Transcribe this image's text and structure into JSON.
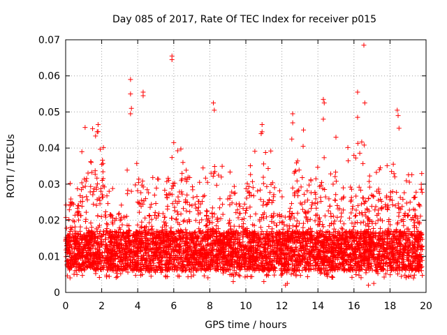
{
  "chart_data": {
    "type": "scatter",
    "title": "Day 085 of 2017, Rate Of TEC Index for receiver p015",
    "xlabel": "GPS time / hours",
    "ylabel": "ROTI / TECUs",
    "xlim": [
      0,
      20
    ],
    "ylim": [
      0,
      0.07
    ],
    "x_ticks": [
      "0",
      "2",
      "4",
      "6",
      "8",
      "10",
      "12",
      "14",
      "16",
      "18",
      "20"
    ],
    "y_ticks": [
      "0",
      "0.01",
      "0.02",
      "0.03",
      "0.04",
      "0.05",
      "0.06",
      "0.07"
    ],
    "grid": true,
    "marker": "+",
    "marker_color": "#ff0000",
    "series": [
      {
        "name": "ROTI",
        "points": [
          [
            3.6,
            0.059
          ],
          [
            3.6,
            0.055
          ],
          [
            3.65,
            0.051
          ],
          [
            3.6,
            0.0495
          ],
          [
            4.3,
            0.0555
          ],
          [
            4.3,
            0.0545
          ],
          [
            5.9,
            0.0655
          ],
          [
            5.9,
            0.0645
          ],
          [
            8.2,
            0.0525
          ],
          [
            8.25,
            0.0505
          ],
          [
            10.9,
            0.0465
          ],
          [
            10.9,
            0.0445
          ],
          [
            10.85,
            0.044
          ],
          [
            12.6,
            0.0495
          ],
          [
            12.6,
            0.047
          ],
          [
            12.55,
            0.0425
          ],
          [
            13.2,
            0.045
          ],
          [
            14.3,
            0.0535
          ],
          [
            14.35,
            0.0525
          ],
          [
            14.3,
            0.048
          ],
          [
            15.0,
            0.043
          ],
          [
            16.2,
            0.0555
          ],
          [
            16.2,
            0.0485
          ],
          [
            16.6,
            0.0525
          ],
          [
            16.55,
            0.0685
          ],
          [
            18.4,
            0.0505
          ],
          [
            18.45,
            0.049
          ],
          [
            18.5,
            0.0455
          ],
          [
            1.8,
            0.0465
          ],
          [
            1.75,
            0.0445
          ],
          [
            0.9,
            0.039
          ],
          [
            6.0,
            0.0415
          ],
          [
            12.2,
            0.002
          ],
          [
            12.3,
            0.0025
          ],
          [
            16.8,
            0.002
          ],
          [
            17.1,
            0.0025
          ],
          [
            11.0,
            0.003
          ],
          [
            9.3,
            0.003
          ]
        ]
      }
    ],
    "density_profile": {
      "description": "dense band of ROTI values roughly 0.004-0.02 TECU throughout 0-19.8 h; per-bin typical upper envelope",
      "bins": [
        {
          "x0": 0.0,
          "x1": 1.0,
          "upper": 0.027,
          "spike": 0.038
        },
        {
          "x0": 1.0,
          "x1": 2.2,
          "upper": 0.034,
          "spike": 0.046
        },
        {
          "x0": 2.2,
          "x1": 3.4,
          "upper": 0.022,
          "spike": 0.03
        },
        {
          "x0": 3.4,
          "x1": 4.6,
          "upper": 0.03,
          "spike": 0.038
        },
        {
          "x0": 4.6,
          "x1": 5.6,
          "upper": 0.025,
          "spike": 0.033
        },
        {
          "x0": 5.6,
          "x1": 6.6,
          "upper": 0.032,
          "spike": 0.04
        },
        {
          "x0": 6.6,
          "x1": 8.0,
          "upper": 0.027,
          "spike": 0.036
        },
        {
          "x0": 8.0,
          "x1": 9.0,
          "upper": 0.022,
          "spike": 0.037
        },
        {
          "x0": 9.0,
          "x1": 10.0,
          "upper": 0.027,
          "spike": 0.034
        },
        {
          "x0": 10.0,
          "x1": 11.5,
          "upper": 0.031,
          "spike": 0.04
        },
        {
          "x0": 11.5,
          "x1": 12.6,
          "upper": 0.022,
          "spike": 0.03
        },
        {
          "x0": 12.6,
          "x1": 13.4,
          "upper": 0.034,
          "spike": 0.041
        },
        {
          "x0": 13.4,
          "x1": 14.4,
          "upper": 0.03,
          "spike": 0.04
        },
        {
          "x0": 14.4,
          "x1": 15.6,
          "upper": 0.027,
          "spike": 0.036
        },
        {
          "x0": 15.6,
          "x1": 16.6,
          "upper": 0.03,
          "spike": 0.042
        },
        {
          "x0": 16.6,
          "x1": 17.8,
          "upper": 0.029,
          "spike": 0.035
        },
        {
          "x0": 17.8,
          "x1": 18.8,
          "upper": 0.028,
          "spike": 0.038
        },
        {
          "x0": 18.8,
          "x1": 19.8,
          "upper": 0.028,
          "spike": 0.037
        }
      ],
      "lower": 0.004
    }
  }
}
